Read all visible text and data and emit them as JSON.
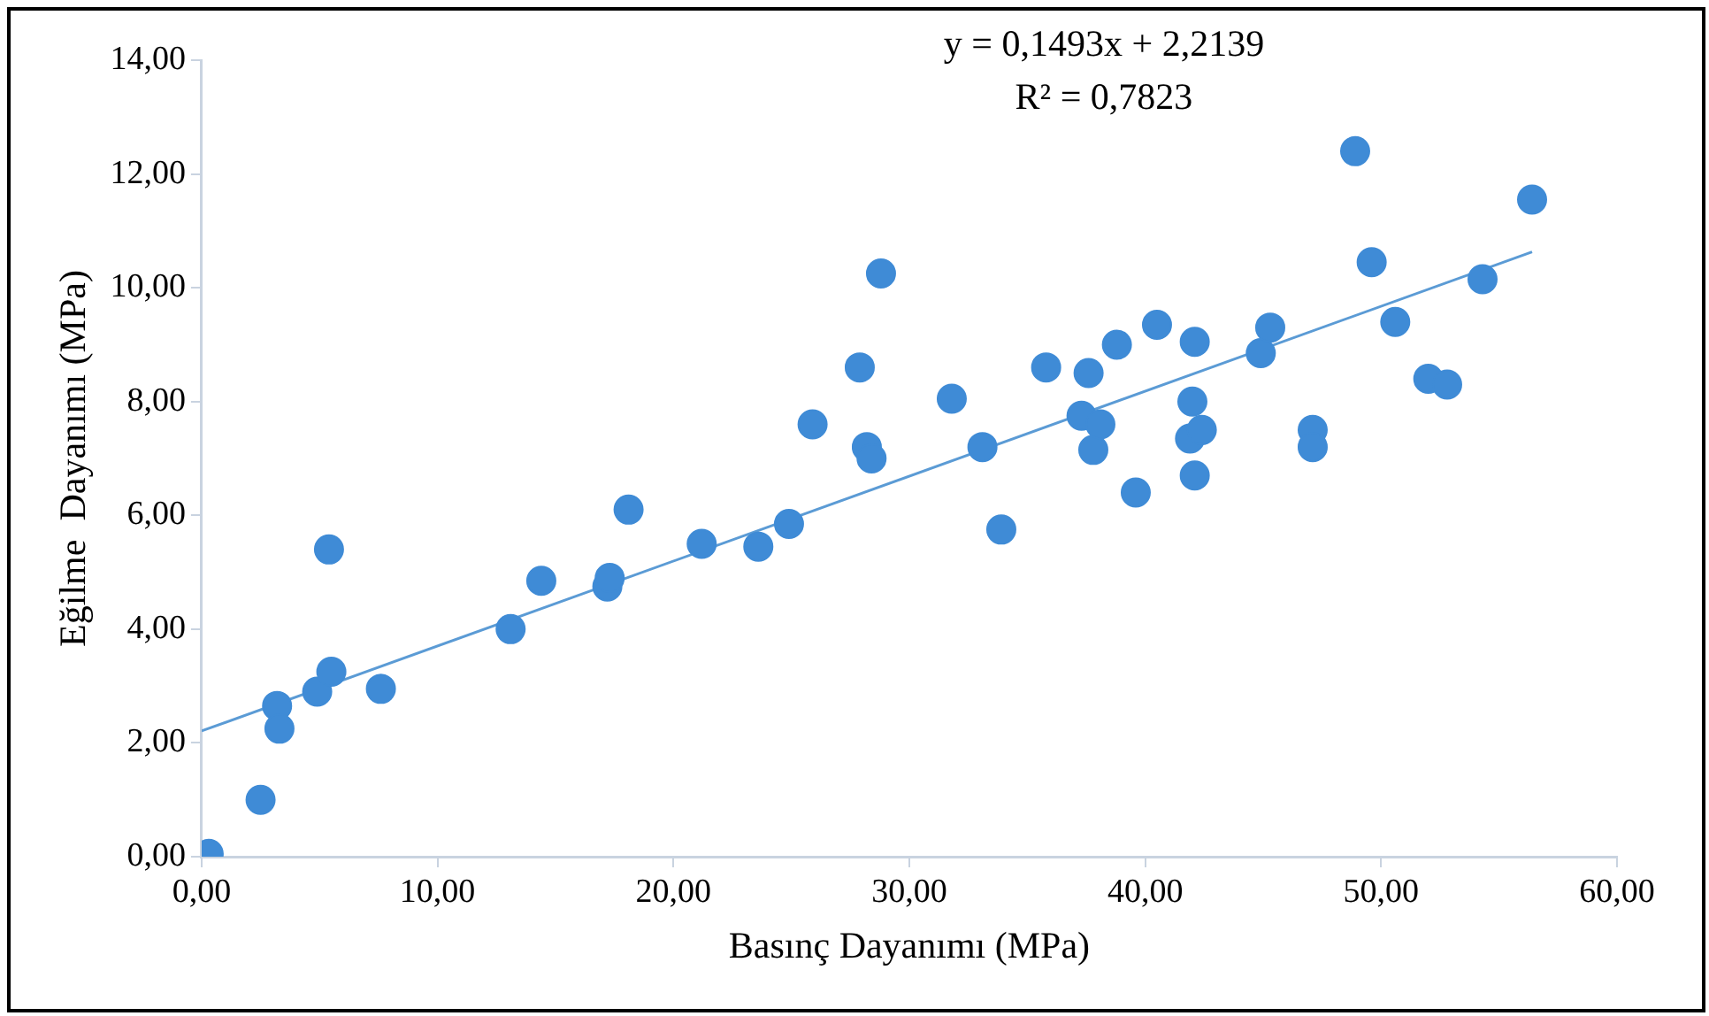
{
  "chart_data": {
    "type": "scatter",
    "xlabel": "Basınç Dayanımı (MPa)",
    "ylabel": "Eğilme  Dayanımı (MPa)",
    "annotations": [
      "y = 0,1493x + 2,2139",
      "R² = 0,7823"
    ],
    "xlim": [
      0,
      60
    ],
    "xticks": [
      {
        "value": 0,
        "label": "0,00"
      },
      {
        "value": 10,
        "label": "10,00"
      },
      {
        "value": 20,
        "label": "20,00"
      },
      {
        "value": 30,
        "label": "30,00"
      },
      {
        "value": 40,
        "label": "40,00"
      },
      {
        "value": 50,
        "label": "50,00"
      },
      {
        "value": 60,
        "label": "60,00"
      }
    ],
    "ylim": [
      0,
      14
    ],
    "yticks": [
      {
        "value": 0,
        "label": "0,00"
      },
      {
        "value": 2,
        "label": "2,00"
      },
      {
        "value": 4,
        "label": "4,00"
      },
      {
        "value": 6,
        "label": "6,00"
      },
      {
        "value": 8,
        "label": "8,00"
      },
      {
        "value": 10,
        "label": "10,00"
      },
      {
        "value": 12,
        "label": "12,00"
      },
      {
        "value": 14,
        "label": "14,00"
      }
    ],
    "grid": false,
    "legend": false,
    "marker": "circle",
    "series": [
      {
        "color": "#3f8bd6",
        "x": [
          0.3,
          2.5,
          3.2,
          3.3,
          4.9,
          5.4,
          5.5,
          7.6,
          13.1,
          14.4,
          17.2,
          17.3,
          18.1,
          21.2,
          23.6,
          24.9,
          25.9,
          27.9,
          28.2,
          28.4,
          28.8,
          31.8,
          33.1,
          33.9,
          35.8,
          37.3,
          37.6,
          37.8,
          38.1,
          38.8,
          39.6,
          40.5,
          41.9,
          42.0,
          42.1,
          42.1,
          42.4,
          44.9,
          45.3,
          47.1,
          47.1,
          48.9,
          49.6,
          50.6,
          52.0,
          52.8,
          54.3,
          56.4
        ],
        "values": [
          0.05,
          1.0,
          2.65,
          2.25,
          2.9,
          5.4,
          3.25,
          2.95,
          4.0,
          4.85,
          4.75,
          4.9,
          6.1,
          5.5,
          5.45,
          5.85,
          7.6,
          8.6,
          7.2,
          7.0,
          10.25,
          8.05,
          7.2,
          5.75,
          8.6,
          7.75,
          8.5,
          7.15,
          7.6,
          9.0,
          6.4,
          9.35,
          7.35,
          8.0,
          9.05,
          6.7,
          7.5,
          8.85,
          9.3,
          7.5,
          7.2,
          12.4,
          10.45,
          9.4,
          8.4,
          8.3,
          10.15,
          11.55
        ]
      },
      {
        "type": "line",
        "color": "#5b9bd5",
        "marker": "none",
        "line_style": "solid",
        "x": [
          0,
          56.4
        ],
        "values": [
          2.21,
          10.63
        ]
      }
    ]
  }
}
